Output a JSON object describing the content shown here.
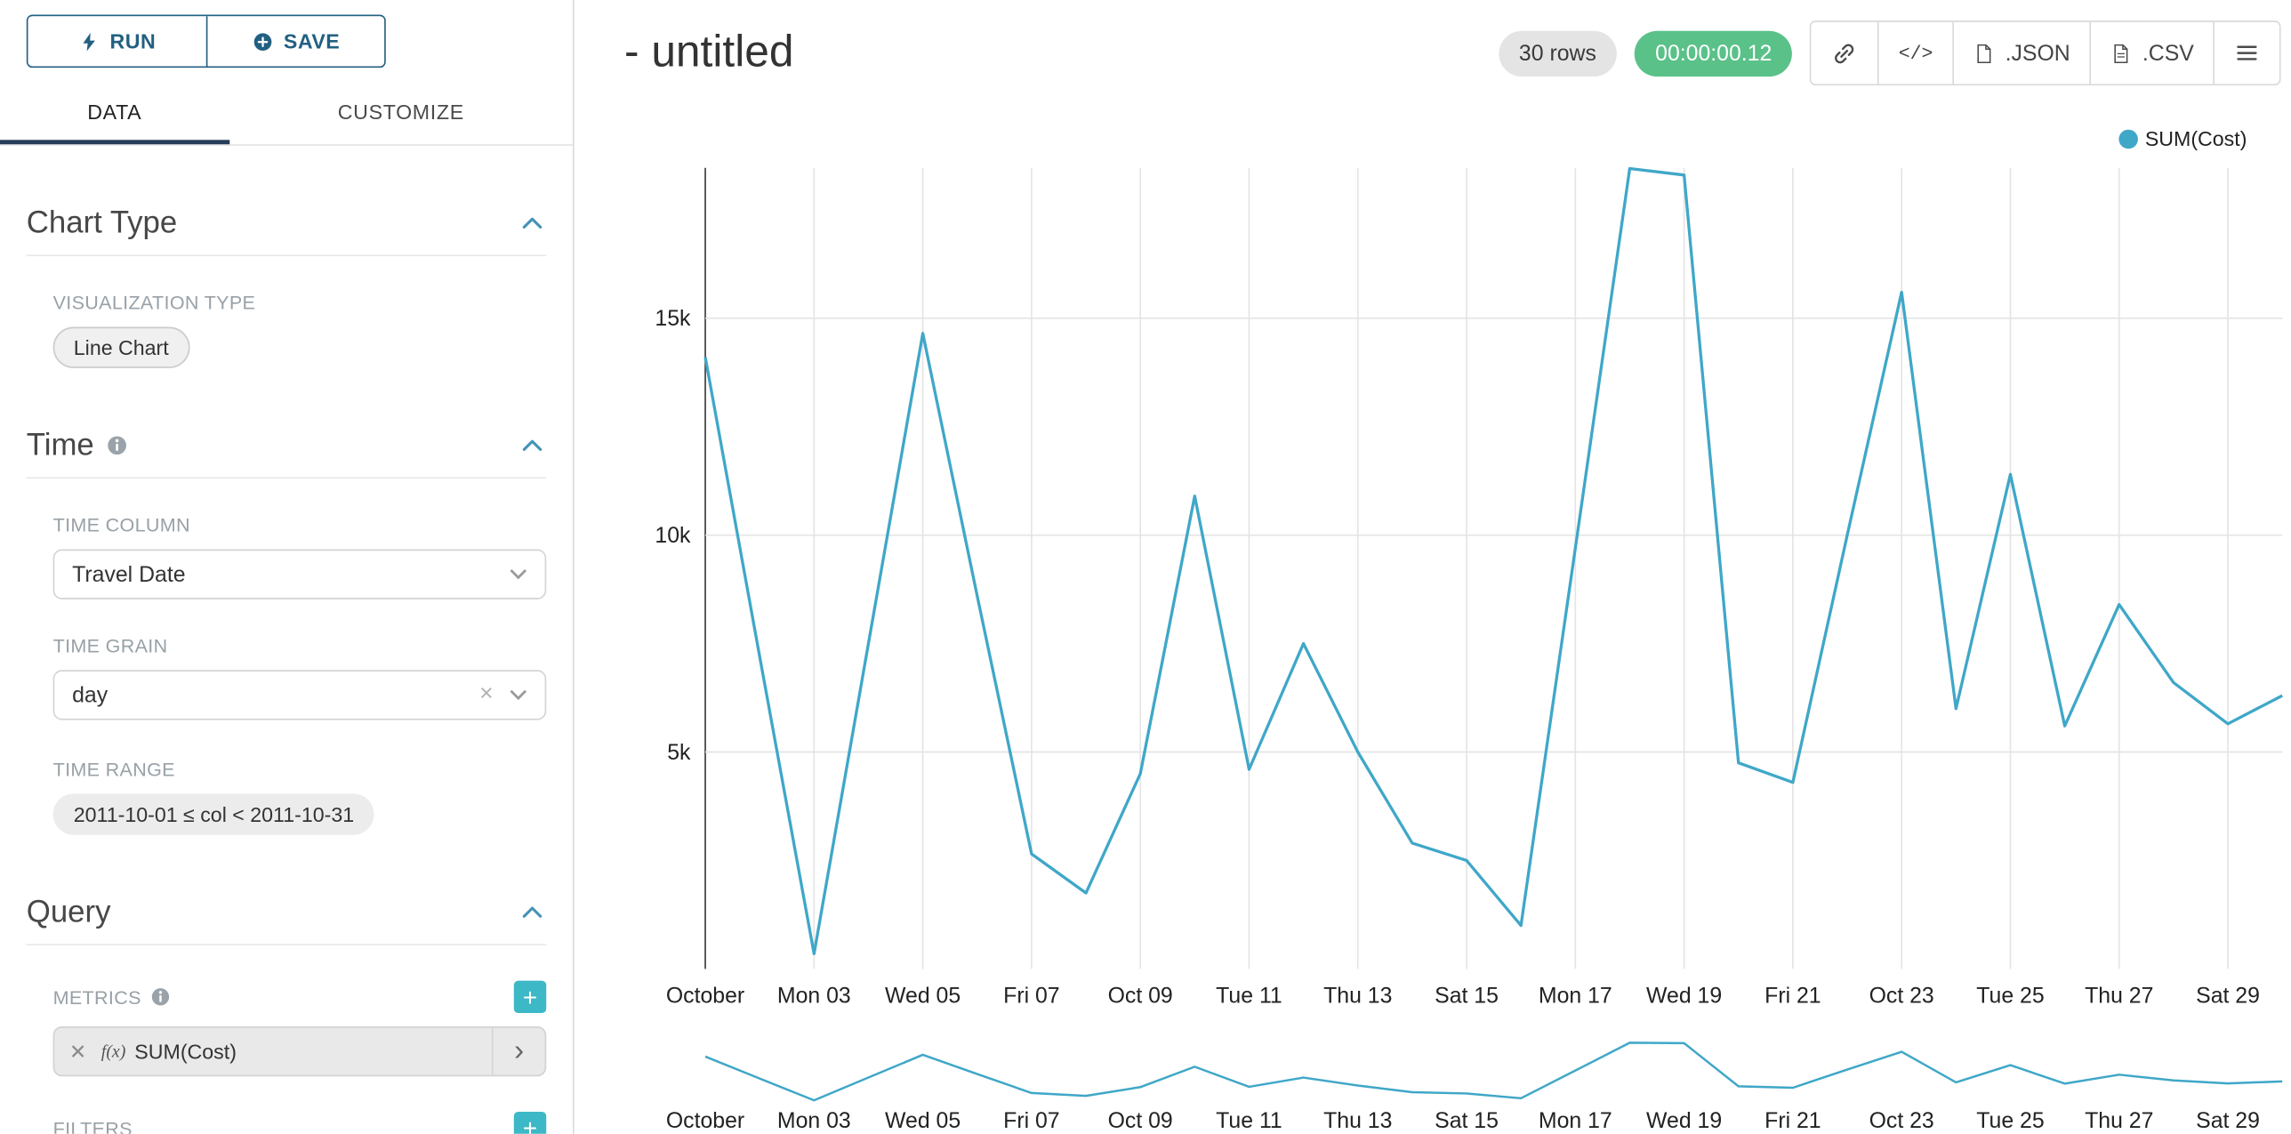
{
  "colors": {
    "line": "#3fa7c8",
    "navy_button": "#226082",
    "tab_underline": "#263d57",
    "plus_button_teal": "#3cb8c6",
    "timer_green": "#5ac189"
  },
  "sidebar": {
    "run_label": "RUN",
    "save_label": "SAVE",
    "tabs": [
      {
        "label": "DATA",
        "active": true
      },
      {
        "label": "CUSTOMIZE",
        "active": false
      }
    ],
    "chart_type": {
      "title": "Chart Type",
      "viz_label": "VISUALIZATION TYPE",
      "viz_value": "Line Chart"
    },
    "time": {
      "title": "Time",
      "column_label": "TIME COLUMN",
      "column_value": "Travel Date",
      "grain_label": "TIME GRAIN",
      "grain_value": "day",
      "range_label": "TIME RANGE",
      "range_value": "2011-10-01 ≤ col < 2011-10-31"
    },
    "query": {
      "title": "Query",
      "metrics_label": "METRICS",
      "metric_fx": "f(x)",
      "metric_value": "SUM(Cost)",
      "filters_label": "FILTERS"
    }
  },
  "header": {
    "title": "- untitled",
    "rows_badge": "30 rows",
    "timer_badge": "00:00:00.12",
    "code_button": "</>",
    "json_button": ".JSON",
    "csv_button": ".CSV"
  },
  "chart_data": {
    "type": "line",
    "title": "- untitled",
    "x": [
      "2011-10-01",
      "2011-10-02",
      "2011-10-03",
      "2011-10-04",
      "2011-10-05",
      "2011-10-06",
      "2011-10-07",
      "2011-10-08",
      "2011-10-09",
      "2011-10-10",
      "2011-10-11",
      "2011-10-12",
      "2011-10-13",
      "2011-10-14",
      "2011-10-15",
      "2011-10-16",
      "2011-10-17",
      "2011-10-18",
      "2011-10-19",
      "2011-10-20",
      "2011-10-21",
      "2011-10-22",
      "2011-10-23",
      "2011-10-24",
      "2011-10-25",
      "2011-10-26",
      "2011-10-27",
      "2011-10-28",
      "2011-10-29",
      "2011-10-30"
    ],
    "series": [
      {
        "name": "SUM(Cost)",
        "color": "#3fa7c8",
        "values": [
          14100,
          7200,
          350,
          7500,
          14650,
          8600,
          2650,
          1750,
          4500,
          10900,
          4600,
          7500,
          5000,
          2900,
          2500,
          1000,
          9700,
          18450,
          18300,
          4750,
          4300,
          10000,
          15600,
          6000,
          11400,
          5600,
          8400,
          6600,
          5650,
          6300
        ]
      }
    ],
    "x_tick_labels": [
      "October",
      "Mon 03",
      "Wed 05",
      "Fri 07",
      "Oct 09",
      "Tue 11",
      "Thu 13",
      "Sat 15",
      "Mon 17",
      "Wed 19",
      "Fri 21",
      "Oct 23",
      "Tue 25",
      "Thu 27",
      "Sat 29"
    ],
    "x_tick_every": 2,
    "y_ticks": [
      5000,
      10000,
      15000
    ],
    "y_tick_labels": [
      "5k",
      "10k",
      "15k"
    ],
    "ylim": [
      0,
      18500
    ],
    "xlabel": "",
    "ylabel": "",
    "grid": true,
    "legend": [
      {
        "label": "SUM(Cost)",
        "color": "#3fa7c8"
      }
    ],
    "legend_position": "top-right",
    "has_brush_minichart": true
  }
}
